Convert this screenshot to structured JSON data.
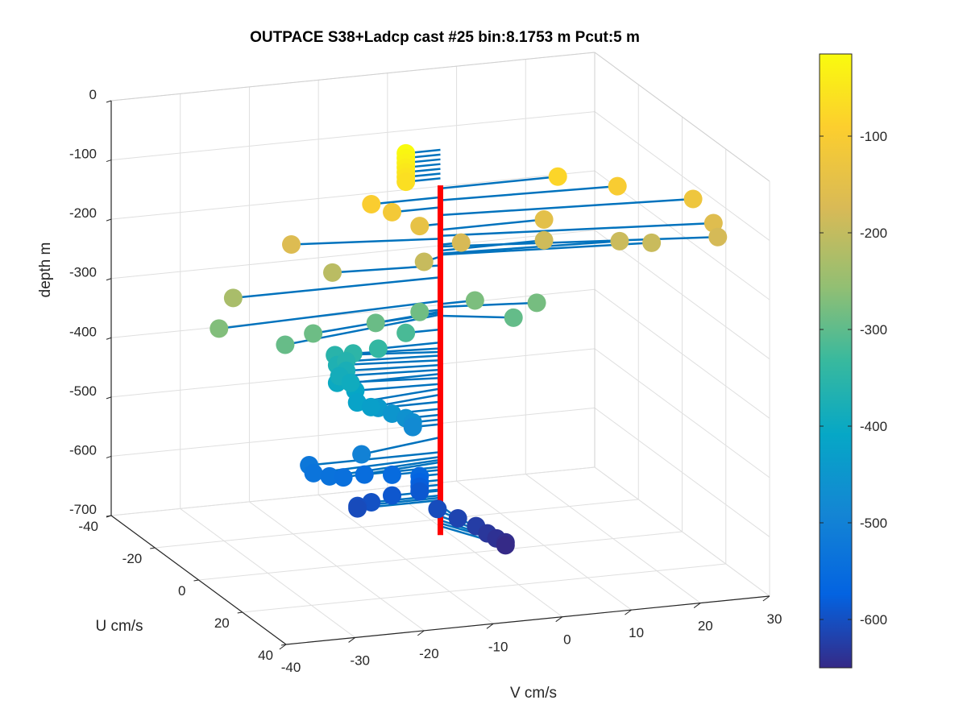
{
  "chart_data": {
    "type": "scatter3d",
    "title": "OUTPACE S38+Ladcp cast #25 bin:8.1753 m  Pcut:5 m",
    "xlabel": "V cm/s",
    "ylabel": "U cm/s",
    "zlabel": "depth m",
    "xlim": [
      -40,
      30
    ],
    "ylim": [
      -40,
      40
    ],
    "zlim": [
      -700,
      0
    ],
    "x_ticks": [
      "-40",
      "-30",
      "-20",
      "-10",
      "0",
      "10",
      "20",
      "30"
    ],
    "y_ticks": [
      "-40",
      "-20",
      "0",
      "20",
      "40"
    ],
    "z_ticks": [
      "0",
      "-100",
      "-200",
      "-300",
      "-400",
      "-500",
      "-600",
      "-700"
    ],
    "grid": true,
    "colormap": "parula",
    "colorbar": {
      "range": [
        -650,
        -15
      ],
      "ticks": [
        "-100",
        "-200",
        "-300",
        "-400",
        "-500",
        "-600"
      ]
    },
    "reference_line": {
      "color": "#ff0000",
      "v": -5,
      "u": 0,
      "depth_top": -75,
      "depth_bottom": -665
    },
    "stick_color": "#0072bd",
    "points": [
      {
        "v": -10,
        "u": 0,
        "depth": -15
      },
      {
        "v": -10,
        "u": 0,
        "depth": -23
      },
      {
        "v": -10,
        "u": 0,
        "depth": -31
      },
      {
        "v": -10,
        "u": 0,
        "depth": -39
      },
      {
        "v": -10,
        "u": 0,
        "depth": -47
      },
      {
        "v": -10,
        "u": 0,
        "depth": -55
      },
      {
        "v": -10,
        "u": 0,
        "depth": -63
      },
      {
        "v": 12,
        "u": 0,
        "depth": -80
      },
      {
        "v": -15,
        "u": 0,
        "depth": -95
      },
      {
        "v": 20,
        "u": 2,
        "depth": -100
      },
      {
        "v": -12,
        "u": 0,
        "depth": -112
      },
      {
        "v": 30,
        "u": 5,
        "depth": -125
      },
      {
        "v": -8,
        "u": 0,
        "depth": -140
      },
      {
        "v": 10,
        "u": 0,
        "depth": -150
      },
      {
        "v": 32,
        "u": 8,
        "depth": -160
      },
      {
        "v": -25,
        "u": -5,
        "depth": -165
      },
      {
        "v": -2,
        "u": 0,
        "depth": -175
      },
      {
        "v": 32,
        "u": 10,
        "depth": -178
      },
      {
        "v": 10,
        "u": 0,
        "depth": -185
      },
      {
        "v": 20,
        "u": 3,
        "depth": -190
      },
      {
        "v": 24,
        "u": 5,
        "depth": -192
      },
      {
        "v": -8,
        "u": 2,
        "depth": -195
      },
      {
        "v": -20,
        "u": -2,
        "depth": -210
      },
      {
        "v": -35,
        "u": 0,
        "depth": -230
      },
      {
        "v": -38,
        "u": 3,
        "depth": -270
      },
      {
        "v": -15,
        "u": 2,
        "depth": -290
      },
      {
        "v": -8,
        "u": 0,
        "depth": -285
      },
      {
        "v": 0,
        "u": 0,
        "depth": -275
      },
      {
        "v": 8,
        "u": 3,
        "depth": -280
      },
      {
        "v": -25,
        "u": 5,
        "depth": -288
      },
      {
        "v": -30,
        "u": 8,
        "depth": -293
      },
      {
        "v": 4,
        "u": 5,
        "depth": -295
      },
      {
        "v": -10,
        "u": 0,
        "depth": -318
      },
      {
        "v": -14,
        "u": 0,
        "depth": -340
      },
      {
        "v": -17,
        "u": -2,
        "depth": -350
      },
      {
        "v": -19,
        "u": -4,
        "depth": -356
      },
      {
        "v": -18,
        "u": -2,
        "depth": -362
      },
      {
        "v": -19,
        "u": -3,
        "depth": -370
      },
      {
        "v": -18,
        "u": -2,
        "depth": -378
      },
      {
        "v": -19,
        "u": -2,
        "depth": -386
      },
      {
        "v": -18,
        "u": 0,
        "depth": -393
      },
      {
        "v": -19,
        "u": -3,
        "depth": -400
      },
      {
        "v": -17,
        "u": -1,
        "depth": -410
      },
      {
        "v": -18,
        "u": 3,
        "depth": -418
      },
      {
        "v": -16,
        "u": 3,
        "depth": -428
      },
      {
        "v": -14,
        "u": 0,
        "depth": -440
      },
      {
        "v": -12,
        "u": 0,
        "depth": -452
      },
      {
        "v": -10,
        "u": 0,
        "depth": -462
      },
      {
        "v": -9,
        "u": 0,
        "depth": -470
      },
      {
        "v": -9,
        "u": 0,
        "depth": -478
      },
      {
        "v": -18,
        "u": 5,
        "depth": -500
      },
      {
        "v": -24,
        "u": 0,
        "depth": -525
      },
      {
        "v": -24,
        "u": 2,
        "depth": -533
      },
      {
        "v": -22,
        "u": 3,
        "depth": -538
      },
      {
        "v": -20,
        "u": 3,
        "depth": -542
      },
      {
        "v": -16,
        "u": 0,
        "depth": -550
      },
      {
        "v": -12,
        "u": 0,
        "depth": -555
      },
      {
        "v": -8,
        "u": 0,
        "depth": -562
      },
      {
        "v": -8,
        "u": 0,
        "depth": -572
      },
      {
        "v": -8,
        "u": 0,
        "depth": -580
      },
      {
        "v": -8,
        "u": 0,
        "depth": -588
      },
      {
        "v": -12,
        "u": 0,
        "depth": -590
      },
      {
        "v": -15,
        "u": 0,
        "depth": -598
      },
      {
        "v": -17,
        "u": 0,
        "depth": -602
      },
      {
        "v": -17,
        "u": 0,
        "depth": -606
      },
      {
        "v": -7,
        "u": 5,
        "depth": -605
      },
      {
        "v": -5,
        "u": 8,
        "depth": -615
      },
      {
        "v": -3,
        "u": 10,
        "depth": -625
      },
      {
        "v": -2,
        "u": 12,
        "depth": -633
      },
      {
        "v": -1,
        "u": 13,
        "depth": -640
      },
      {
        "v": 0,
        "u": 14,
        "depth": -645
      },
      {
        "v": 0,
        "u": 14,
        "depth": -650
      }
    ]
  }
}
